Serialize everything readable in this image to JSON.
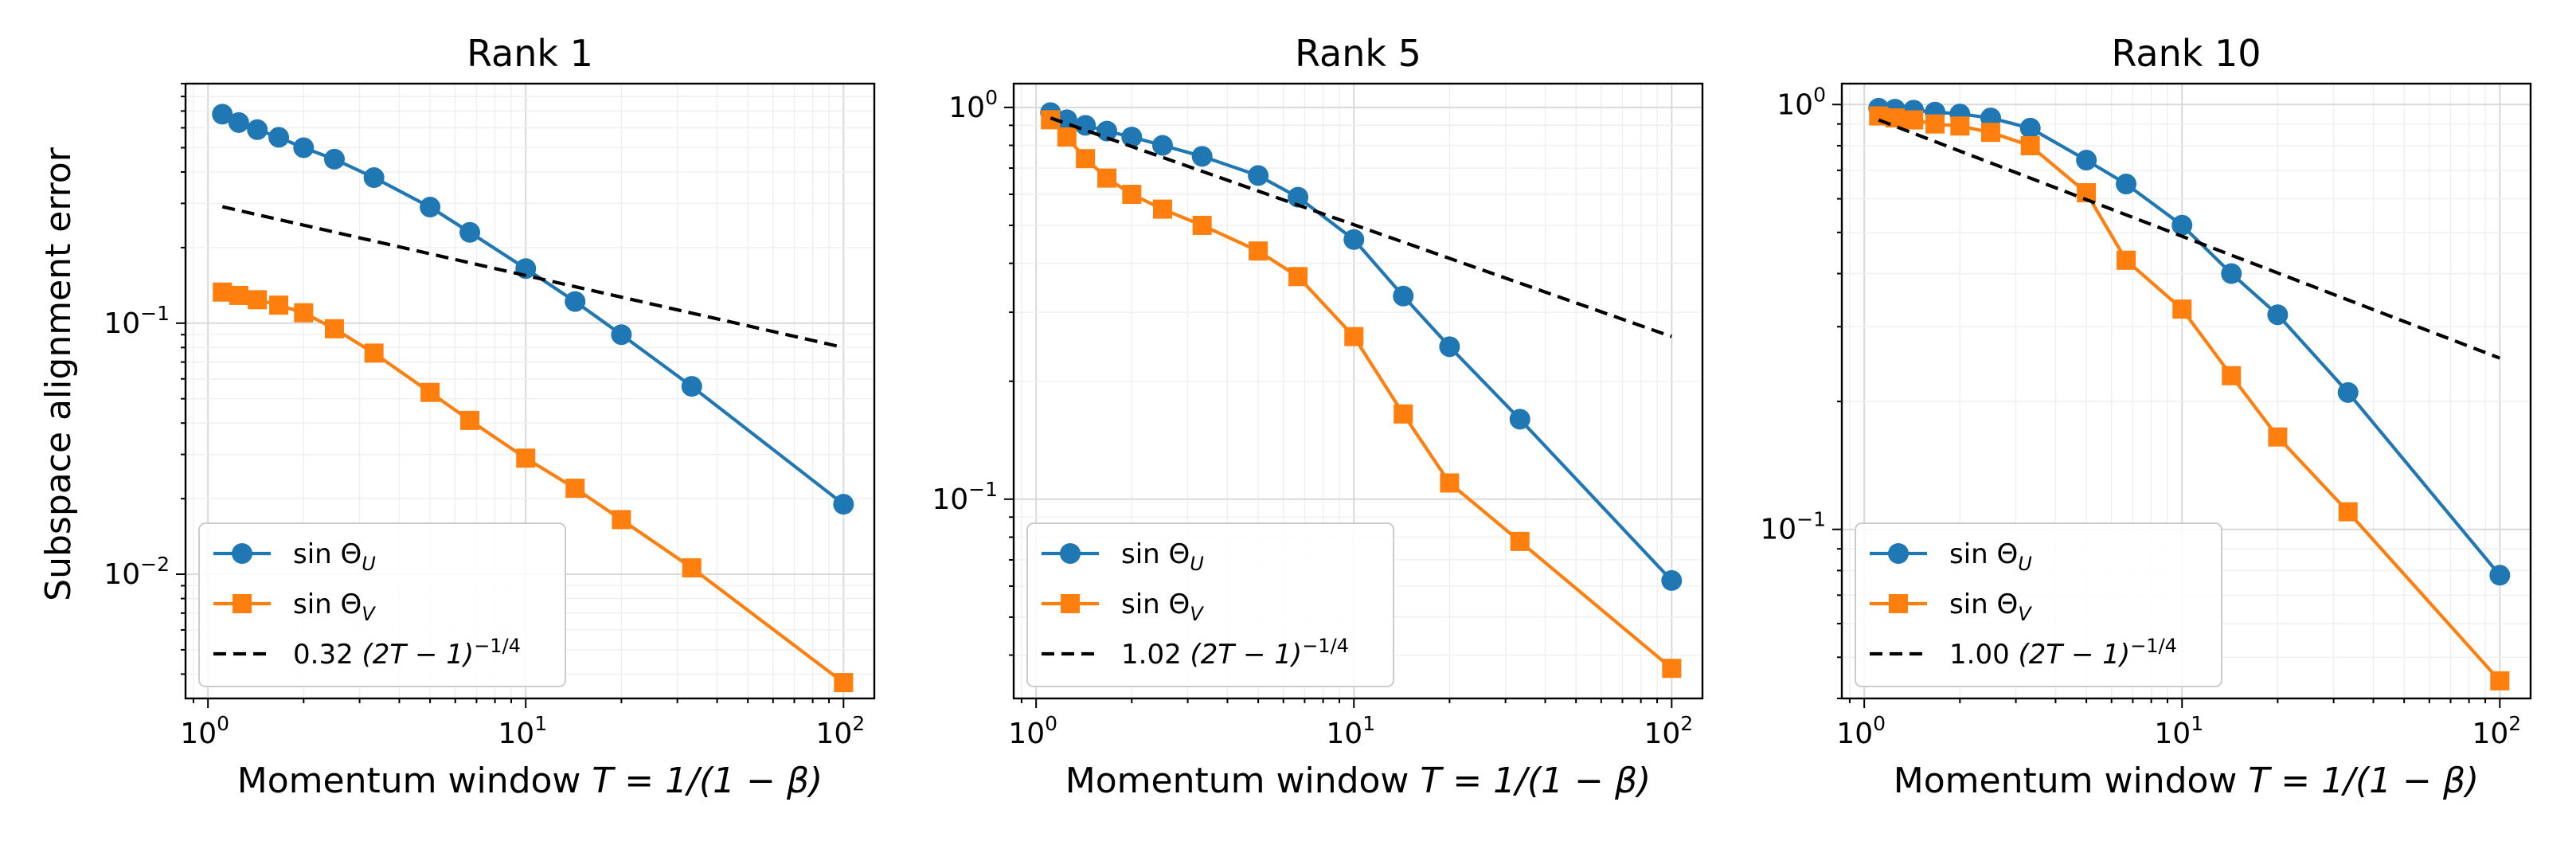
{
  "figure": {
    "ylabel": "Subspace alignment error",
    "xlabel_prefix": "Momentum window ",
    "xlabel_math": "T = 1/(1 − β)"
  },
  "style": {
    "colors": {
      "sin_U": "#1f77b4",
      "sin_V": "#ff7f0e",
      "ref": "#000000"
    },
    "markers": {
      "sin_U": "circle",
      "sin_V": "square",
      "ref": "none"
    },
    "xscale": "log",
    "yscale": "log",
    "grid": true,
    "legend_placement": "lower-left"
  },
  "legend_labels": {
    "sin_U": {
      "text": "sin Θ",
      "sub": "U"
    },
    "sin_V": {
      "text": "sin Θ",
      "sub": "V"
    },
    "ref_suffix": "(2T − 1)",
    "ref_exponent": "−1/4"
  },
  "chart_data": [
    {
      "type": "line",
      "title": "Rank 1",
      "xlabel": "Momentum window T = 1/(1 − β)",
      "ylabel": "Subspace alignment error",
      "xscale": "log",
      "yscale": "log",
      "xlim": [
        0.85,
        125
      ],
      "ylim": [
        0.0032,
        0.9
      ],
      "xticks": [
        {
          "base": "10",
          "exp": "0",
          "value": 1
        },
        {
          "base": "10",
          "exp": "1",
          "value": 10
        },
        {
          "base": "10",
          "exp": "2",
          "value": 100
        }
      ],
      "yticks": [
        {
          "base": "10",
          "exp": "−2",
          "value": 0.01
        },
        {
          "base": "10",
          "exp": "−1",
          "value": 0.1
        }
      ],
      "legend_coef": "0.32",
      "series": [
        {
          "key": "sin_U",
          "x": [
            1.11,
            1.25,
            1.43,
            1.67,
            2.0,
            2.5,
            3.33,
            5.0,
            6.67,
            10,
            14.3,
            20,
            33.3,
            100
          ],
          "y": [
            0.68,
            0.63,
            0.59,
            0.55,
            0.5,
            0.45,
            0.38,
            0.29,
            0.23,
            0.165,
            0.122,
            0.09,
            0.056,
            0.019
          ]
        },
        {
          "key": "sin_V",
          "x": [
            1.11,
            1.25,
            1.43,
            1.67,
            2.0,
            2.5,
            3.33,
            5.0,
            6.67,
            10,
            14.3,
            20,
            33.3,
            100
          ],
          "y": [
            0.133,
            0.129,
            0.124,
            0.118,
            0.11,
            0.095,
            0.076,
            0.053,
            0.041,
            0.029,
            0.022,
            0.0165,
            0.0106,
            0.0037
          ]
        },
        {
          "key": "ref",
          "x": [
            1.11,
            100
          ],
          "y": [
            0.291,
            0.08
          ]
        }
      ]
    },
    {
      "type": "line",
      "title": "Rank 5",
      "xlabel": "Momentum window T = 1/(1 − β)",
      "ylabel": "",
      "xscale": "log",
      "yscale": "log",
      "xlim": [
        0.85,
        125
      ],
      "ylim": [
        0.031,
        1.15
      ],
      "xticks": [
        {
          "base": "10",
          "exp": "0",
          "value": 1
        },
        {
          "base": "10",
          "exp": "1",
          "value": 10
        },
        {
          "base": "10",
          "exp": "2",
          "value": 100
        }
      ],
      "yticks": [
        {
          "base": "10",
          "exp": "−1",
          "value": 0.1
        },
        {
          "base": "10",
          "exp": "0",
          "value": 1
        }
      ],
      "legend_coef": "1.02",
      "series": [
        {
          "key": "sin_U",
          "x": [
            1.11,
            1.25,
            1.43,
            1.67,
            2.0,
            2.5,
            3.33,
            5.0,
            6.67,
            10,
            14.3,
            20,
            33.3,
            100
          ],
          "y": [
            0.97,
            0.93,
            0.9,
            0.87,
            0.84,
            0.8,
            0.75,
            0.67,
            0.59,
            0.46,
            0.33,
            0.245,
            0.16,
            0.062
          ]
        },
        {
          "key": "sin_V",
          "x": [
            1.11,
            1.25,
            1.43,
            1.67,
            2.0,
            2.5,
            3.33,
            5.0,
            6.67,
            10,
            14.3,
            20,
            33.3,
            100
          ],
          "y": [
            0.93,
            0.84,
            0.74,
            0.66,
            0.6,
            0.55,
            0.5,
            0.43,
            0.37,
            0.26,
            0.165,
            0.11,
            0.078,
            0.037
          ]
        },
        {
          "key": "ref",
          "x": [
            1.11,
            100
          ],
          "y": [
            0.94,
            0.26
          ]
        }
      ]
    },
    {
      "type": "line",
      "title": "Rank 10",
      "xlabel": "Momentum window T = 1/(1 − β)",
      "ylabel": "",
      "xscale": "log",
      "yscale": "log",
      "xlim": [
        0.85,
        125
      ],
      "ylim": [
        0.04,
        1.12
      ],
      "xticks": [
        {
          "base": "10",
          "exp": "0",
          "value": 1
        },
        {
          "base": "10",
          "exp": "1",
          "value": 10
        },
        {
          "base": "10",
          "exp": "2",
          "value": 100
        }
      ],
      "yticks": [
        {
          "base": "10",
          "exp": "−1",
          "value": 0.1
        },
        {
          "base": "10",
          "exp": "0",
          "value": 1
        }
      ],
      "legend_coef": "1.00",
      "series": [
        {
          "key": "sin_U",
          "x": [
            1.11,
            1.25,
            1.43,
            1.67,
            2.0,
            2.5,
            3.33,
            5.0,
            6.67,
            10,
            14.3,
            20,
            33.3,
            100
          ],
          "y": [
            0.98,
            0.975,
            0.97,
            0.96,
            0.95,
            0.93,
            0.88,
            0.74,
            0.65,
            0.52,
            0.4,
            0.32,
            0.21,
            0.078
          ]
        },
        {
          "key": "sin_V",
          "x": [
            1.11,
            1.25,
            1.43,
            1.67,
            2.0,
            2.5,
            3.33,
            5.0,
            6.67,
            10,
            14.3,
            20,
            33.3,
            100
          ],
          "y": [
            0.94,
            0.93,
            0.92,
            0.9,
            0.89,
            0.86,
            0.8,
            0.62,
            0.43,
            0.33,
            0.23,
            0.165,
            0.11,
            0.044
          ]
        },
        {
          "key": "ref",
          "x": [
            1.11,
            100
          ],
          "y": [
            0.92,
            0.253
          ]
        }
      ]
    }
  ]
}
